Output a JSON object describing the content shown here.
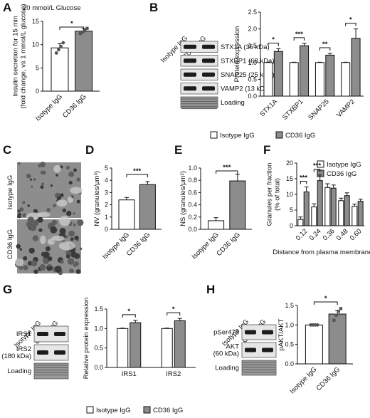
{
  "panels": {
    "A": "A",
    "B": "B",
    "C": "C",
    "D": "D",
    "E": "E",
    "F": "F",
    "G": "G",
    "H": "H"
  },
  "panel_a_condition": "20 mmol/L Glucose",
  "legend": {
    "isotype": "Isotype IgG",
    "cd36": "CD36 IgG"
  },
  "colors": {
    "isotype": "#ffffff",
    "cd36": "#8c8c8c",
    "stroke": "#111111",
    "point": "#555555"
  },
  "micrographs": {
    "top_label": "Isotype IgG",
    "bottom_label": "CD36 IgG"
  },
  "blots": {
    "B": {
      "lanes": [
        "Isotype IgG",
        "CD36 IgG"
      ],
      "rows": [
        "STX1A (35 kDa)",
        "STXBP1 (68 kDa)",
        "SNAP25 (25 kDa)",
        "VAMP2 (13 kDa)",
        "Loading"
      ]
    },
    "G": {
      "lanes": [
        "Isotype IgG",
        "CD36 IgG"
      ],
      "rows": [
        "IRS1",
        "IRS2\n(180 kDa)",
        "Loading"
      ]
    },
    "H": {
      "lanes": [
        "Isotype IgG",
        "CD36 IgG"
      ],
      "rows": [
        "pSer473",
        "AKT\n(60 kDa)",
        "Loading"
      ]
    }
  },
  "chart_data": [
    {
      "id": "A",
      "type": "bar",
      "categories": [
        "Isotype IgG",
        "CD36 IgG"
      ],
      "values": [
        9.3,
        12.9
      ],
      "errors": [
        0.9,
        0.5
      ],
      "points": [
        [
          8.2,
          8.9,
          9.6,
          10.4
        ],
        [
          12.4,
          12.7,
          13.0,
          13.5
        ]
      ],
      "ylabel": "Insulin secretion for 15 min\n(fold change, vs 1 mmol/L glucose)",
      "ylim": [
        0,
        15
      ],
      "yticks": [
        0,
        5,
        10,
        15
      ],
      "sig": [
        {
          "from": 0,
          "to": 1,
          "label": "*"
        }
      ]
    },
    {
      "id": "B",
      "type": "bar",
      "categories": [
        "STX1A",
        "STXBP1",
        "SNAP25",
        "VAMP2"
      ],
      "series": [
        {
          "name": "Isotype IgG",
          "values": [
            1.0,
            1.0,
            1.0,
            1.0
          ],
          "errors": [
            0.01,
            0.01,
            0.01,
            0.01
          ]
        },
        {
          "name": "CD36 IgG",
          "values": [
            1.33,
            1.5,
            1.22,
            1.72
          ],
          "errors": [
            0.08,
            0.07,
            0.05,
            0.28
          ]
        }
      ],
      "ylabel": "Protein expression",
      "ylim": [
        0,
        2.5
      ],
      "yticks": [
        0,
        0.5,
        1.0,
        1.5,
        2.0,
        2.5
      ],
      "sig": [
        "*",
        "***",
        "**",
        "*"
      ]
    },
    {
      "id": "D",
      "type": "bar",
      "categories": [
        "Isotype IgG",
        "CD36 IgG"
      ],
      "values": [
        2.4,
        3.65
      ],
      "errors": [
        0.2,
        0.25
      ],
      "ylabel": "NV (granules/μm³)",
      "ylim": [
        0,
        5
      ],
      "yticks": [
        0,
        1,
        2,
        3,
        4,
        5
      ],
      "sig": [
        {
          "from": 0,
          "to": 1,
          "label": "***"
        }
      ]
    },
    {
      "id": "E",
      "type": "bar",
      "categories": [
        "Isotype IgG",
        "CD36 IgG"
      ],
      "values": [
        0.14,
        0.79
      ],
      "errors": [
        0.05,
        0.11
      ],
      "ylabel": "NS (granules/μm²)",
      "ylim": [
        0,
        1.0
      ],
      "yticks": [
        0,
        0.2,
        0.4,
        0.6,
        0.8,
        1.0
      ],
      "sig": [
        {
          "from": 0,
          "to": 1,
          "label": "***"
        }
      ]
    },
    {
      "id": "F",
      "type": "bar",
      "categories": [
        "0.12",
        "0.24",
        "0.36",
        "0.48",
        "0.60"
      ],
      "series": [
        {
          "name": "Isotype IgG",
          "values": [
            2,
            6,
            12.2,
            8,
            6.2
          ],
          "errors": [
            0.8,
            1,
            1.2,
            0.8,
            0.7
          ]
        },
        {
          "name": "CD36 IgG",
          "values": [
            10.8,
            14.4,
            12,
            9.6,
            7.8
          ],
          "errors": [
            1.6,
            1.8,
            1,
            0.9,
            0.7
          ]
        }
      ],
      "xlabel": "Distance from plasma membrane (μm)",
      "ylabel": "Granules per fraction\n(% of total)",
      "ylim": [
        0,
        20
      ],
      "yticks": [
        0,
        5,
        10,
        15,
        20
      ],
      "sig": [
        "***",
        "***",
        "",
        "",
        ""
      ]
    },
    {
      "id": "G",
      "type": "bar",
      "categories": [
        "IRS1",
        "IRS2"
      ],
      "series": [
        {
          "name": "Isotype IgG",
          "values": [
            1.0,
            1.0
          ],
          "errors": [
            0.01,
            0.01
          ]
        },
        {
          "name": "CD36 IgG",
          "values": [
            1.15,
            1.2
          ],
          "errors": [
            0.06,
            0.06
          ]
        }
      ],
      "ylabel": "Relative protein expression",
      "ylim": [
        0,
        1.5
      ],
      "yticks": [
        0,
        0.5,
        1.0,
        1.5
      ],
      "sig": [
        "*",
        "*"
      ]
    },
    {
      "id": "H",
      "type": "bar",
      "categories": [
        "Isotype IgG",
        "CD36 IgG"
      ],
      "values": [
        1.0,
        1.28
      ],
      "errors": [
        0.01,
        0.09
      ],
      "points": [
        [
          1.0,
          1.0,
          1.0,
          1.0
        ],
        [
          1.12,
          1.25,
          1.35,
          1.42
        ]
      ],
      "ylabel": "pAKT/AKT",
      "ylim": [
        0,
        1.5
      ],
      "yticks": [
        0,
        0.5,
        1.0,
        1.5
      ],
      "sig": [
        {
          "from": 0,
          "to": 1,
          "label": "*"
        }
      ]
    }
  ]
}
